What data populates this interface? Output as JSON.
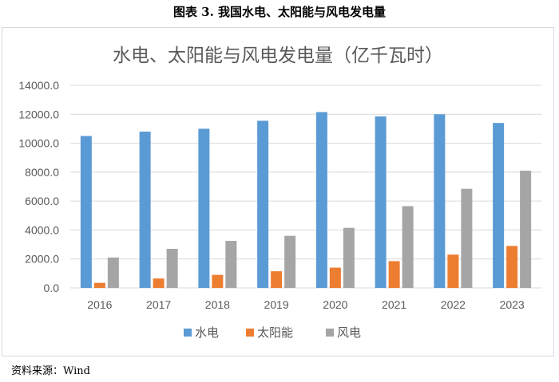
{
  "figure_caption": "图表 3.  我国水电、太阳能与风电发电量",
  "source_note": "资料来源：Wind",
  "colors": {
    "hydro": "#5b9bd5",
    "solar": "#ed7d31",
    "wind": "#a5a5a5",
    "grid": "#d9d9d9",
    "text": "#595959"
  },
  "chart_data": {
    "type": "bar",
    "title": "水电、太阳能与风电发电量（亿千瓦时）",
    "categories": [
      "2016",
      "2017",
      "2018",
      "2019",
      "2020",
      "2021",
      "2022",
      "2023"
    ],
    "series": [
      {
        "name": "水电",
        "color": "#5b9bd5",
        "values": [
          10500,
          10800,
          11000,
          11550,
          12150,
          11850,
          12000,
          11400
        ]
      },
      {
        "name": "太阳能",
        "color": "#ed7d31",
        "values": [
          350,
          650,
          900,
          1150,
          1400,
          1850,
          2300,
          2900
        ]
      },
      {
        "name": "风电",
        "color": "#a5a5a5",
        "values": [
          2100,
          2700,
          3250,
          3600,
          4150,
          5650,
          6850,
          8100
        ]
      }
    ],
    "ylim": [
      0,
      14000
    ],
    "yticks": [
      0,
      2000,
      4000,
      6000,
      8000,
      10000,
      12000,
      14000
    ],
    "ytick_labels": [
      "0.0",
      "2000.0",
      "4000.0",
      "6000.0",
      "8000.0",
      "10000.0",
      "12000.0",
      "14000.0"
    ],
    "grid": true,
    "legend_position": "bottom"
  }
}
